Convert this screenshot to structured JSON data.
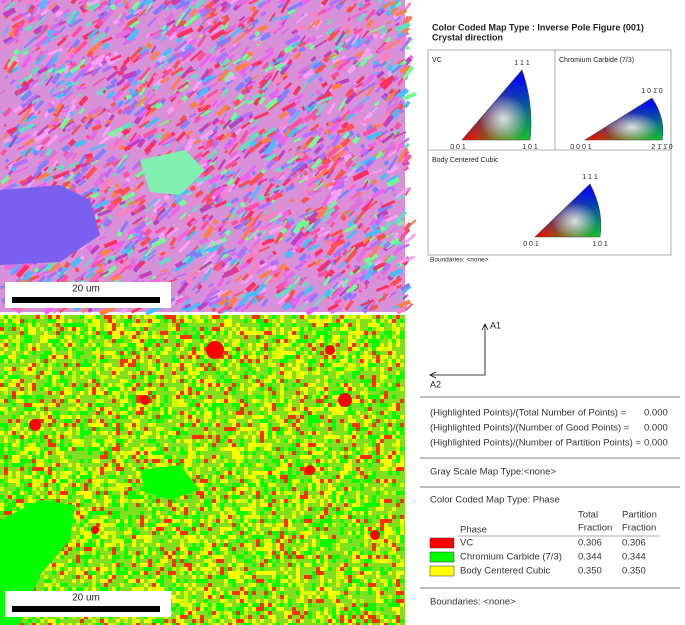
{
  "maps": {
    "scale_top": "20 um",
    "scale_bottom": "20 um"
  },
  "ipf": {
    "title": "Color Coded Map Type : Inverse Pole Figure (001)",
    "subtitle": "Crystal direction",
    "panels": [
      {
        "name": "VC",
        "corners": [
          "0 0 1",
          "1 0 1",
          "1 1 1"
        ]
      },
      {
        "name": "Chromium Carbide (7/3)",
        "corners": [
          "0 0 0 1",
          "2 1̄ 1̄ 0",
          "1 0 1̄ 0"
        ]
      },
      {
        "name": "Body Centered Cubic",
        "corners": [
          "0 0 1",
          "1 0 1",
          "1 1 1"
        ]
      }
    ],
    "boundaries": "Boundaries: <none>"
  },
  "axes": {
    "a1": "A1",
    "a2": "A2"
  },
  "stats": [
    {
      "label": "(Highlighted Points)/(Total Number of Points) =",
      "value": "0.000"
    },
    {
      "label": "(Highlighted Points)/(Number of Good Points) =",
      "value": "0.000"
    },
    {
      "label": "(Highlighted Points)/(Number of Partition Points) =",
      "value": "0.000"
    }
  ],
  "gray": "Gray Scale Map Type:<none>",
  "phase": {
    "title": "Color Coded Map Type: Phase",
    "headers": [
      "Phase",
      "Total",
      "Fraction",
      "Partition",
      "Fraction"
    ],
    "rows": [
      {
        "name": "VC",
        "color": "#ff0000",
        "total": "0.306",
        "partition": "0.306"
      },
      {
        "name": "Chromium Carbide (7/3)",
        "color": "#00ff00",
        "total": "0.344",
        "partition": "0.344"
      },
      {
        "name": "Body Centered Cubic",
        "color": "#ffff00",
        "total": "0.350",
        "partition": "0.350"
      }
    ]
  },
  "boundaries": "Boundaries: <none>"
}
